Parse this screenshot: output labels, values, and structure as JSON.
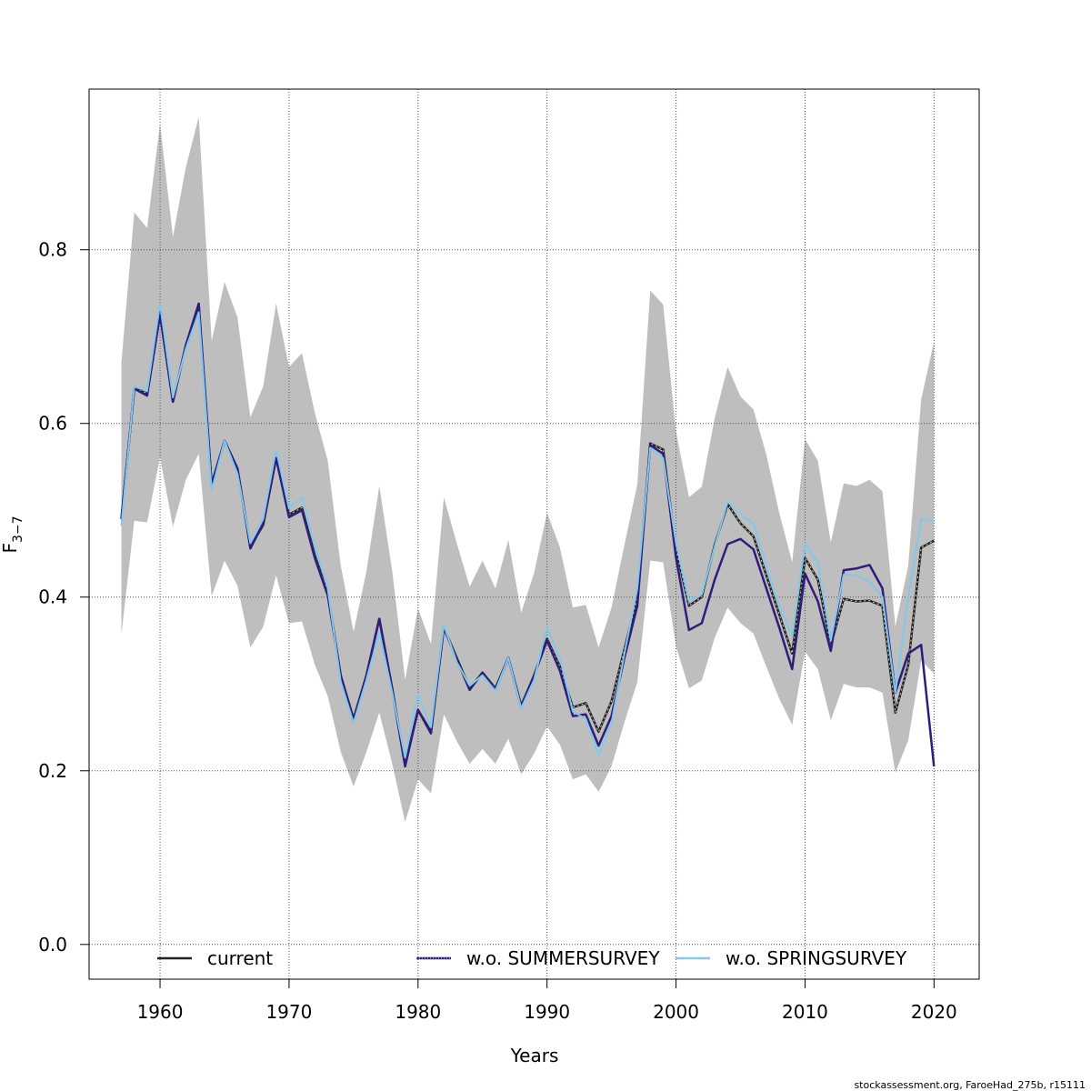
{
  "chart_data": {
    "type": "line",
    "xlabel": "Years",
    "ylabel_main": "F",
    "ylabel_sub": "3−7",
    "xlim": [
      1954.5,
      2023.5
    ],
    "ylim": [
      -0.04,
      0.985
    ],
    "xticks": [
      1960,
      1970,
      1980,
      1990,
      2000,
      2010,
      2020
    ],
    "yticks": [
      0.0,
      0.2,
      0.4,
      0.6,
      0.8
    ],
    "ytick_labels": [
      "0.0",
      "0.2",
      "0.4",
      "0.6",
      "0.8"
    ],
    "grid": true,
    "legend_placement": "bottom",
    "credit": "stockassessment.org, FaroeHad_275b, r15111",
    "years": [
      1957,
      1958,
      1959,
      1960,
      1961,
      1962,
      1963,
      1964,
      1965,
      1966,
      1967,
      1968,
      1969,
      1970,
      1971,
      1972,
      1973,
      1974,
      1975,
      1976,
      1977,
      1978,
      1979,
      1980,
      1981,
      1982,
      1983,
      1984,
      1985,
      1986,
      1987,
      1988,
      1989,
      1990,
      1991,
      1992,
      1993,
      1994,
      1995,
      1996,
      1997,
      1998,
      1999,
      2000,
      2001,
      2002,
      2003,
      2004,
      2005,
      2006,
      2007,
      2008,
      2009,
      2010,
      2011,
      2012,
      2013,
      2014,
      2015,
      2016,
      2017,
      2018,
      2019,
      2020
    ],
    "ci_upper": [
      0.67,
      0.843,
      0.825,
      0.945,
      0.815,
      0.895,
      0.953,
      0.695,
      0.763,
      0.722,
      0.607,
      0.643,
      0.738,
      0.665,
      0.681,
      0.612,
      0.557,
      0.437,
      0.36,
      0.43,
      0.528,
      0.43,
      0.305,
      0.387,
      0.346,
      0.515,
      0.462,
      0.412,
      0.442,
      0.41,
      0.466,
      0.382,
      0.428,
      0.497,
      0.457,
      0.388,
      0.391,
      0.342,
      0.388,
      0.46,
      0.53,
      0.753,
      0.737,
      0.59,
      0.515,
      0.527,
      0.606,
      0.665,
      0.631,
      0.616,
      0.564,
      0.497,
      0.44,
      0.582,
      0.557,
      0.463,
      0.531,
      0.528,
      0.535,
      0.522,
      0.366,
      0.436,
      0.628,
      0.694
    ],
    "ci_lower": [
      0.357,
      0.488,
      0.486,
      0.561,
      0.481,
      0.535,
      0.565,
      0.401,
      0.442,
      0.413,
      0.342,
      0.366,
      0.425,
      0.37,
      0.372,
      0.322,
      0.286,
      0.222,
      0.182,
      0.222,
      0.267,
      0.208,
      0.141,
      0.19,
      0.174,
      0.265,
      0.234,
      0.208,
      0.225,
      0.208,
      0.237,
      0.196,
      0.22,
      0.251,
      0.23,
      0.19,
      0.196,
      0.176,
      0.205,
      0.256,
      0.302,
      0.442,
      0.44,
      0.343,
      0.295,
      0.304,
      0.353,
      0.388,
      0.37,
      0.358,
      0.32,
      0.283,
      0.253,
      0.337,
      0.317,
      0.258,
      0.3,
      0.296,
      0.296,
      0.29,
      0.198,
      0.235,
      0.327,
      0.312
    ],
    "series": [
      {
        "name": "current",
        "color": "#222222",
        "values": [
          0.49,
          0.64,
          0.635,
          0.728,
          0.625,
          0.69,
          0.735,
          0.53,
          0.58,
          0.548,
          0.458,
          0.483,
          0.56,
          0.495,
          0.503,
          0.448,
          0.405,
          0.31,
          0.26,
          0.31,
          0.375,
          0.295,
          0.207,
          0.27,
          0.245,
          0.365,
          0.33,
          0.295,
          0.313,
          0.295,
          0.33,
          0.275,
          0.31,
          0.352,
          0.32,
          0.273,
          0.278,
          0.245,
          0.28,
          0.34,
          0.4,
          0.577,
          0.57,
          0.455,
          0.39,
          0.4,
          0.46,
          0.507,
          0.485,
          0.47,
          0.425,
          0.38,
          0.335,
          0.445,
          0.42,
          0.345,
          0.398,
          0.395,
          0.396,
          0.39,
          0.267,
          0.322,
          0.457,
          0.465
        ]
      },
      {
        "name": "w.o. SUMMERSURVEY",
        "color": "#2e1d7a",
        "values": [
          0.49,
          0.64,
          0.632,
          0.725,
          0.625,
          0.69,
          0.738,
          0.53,
          0.58,
          0.548,
          0.456,
          0.485,
          0.56,
          0.492,
          0.5,
          0.445,
          0.402,
          0.31,
          0.258,
          0.31,
          0.375,
          0.293,
          0.205,
          0.27,
          0.243,
          0.365,
          0.328,
          0.293,
          0.313,
          0.293,
          0.33,
          0.273,
          0.31,
          0.35,
          0.315,
          0.263,
          0.265,
          0.229,
          0.263,
          0.33,
          0.39,
          0.575,
          0.565,
          0.445,
          0.362,
          0.37,
          0.42,
          0.461,
          0.467,
          0.455,
          0.41,
          0.365,
          0.317,
          0.427,
          0.395,
          0.338,
          0.431,
          0.433,
          0.437,
          0.41,
          0.29,
          0.335,
          0.345,
          0.205
        ]
      },
      {
        "name": "w.o. SPRINGSURVEY",
        "color": "#7fc8ee",
        "values": [
          0.482,
          0.643,
          0.637,
          0.738,
          0.63,
          0.686,
          0.728,
          0.523,
          0.58,
          0.542,
          0.462,
          0.49,
          0.57,
          0.502,
          0.515,
          0.458,
          0.41,
          0.303,
          0.255,
          0.305,
          0.36,
          0.29,
          0.215,
          0.288,
          0.25,
          0.368,
          0.325,
          0.298,
          0.31,
          0.292,
          0.33,
          0.272,
          0.305,
          0.365,
          0.33,
          0.268,
          0.26,
          0.218,
          0.255,
          0.335,
          0.41,
          0.572,
          0.56,
          0.462,
          0.395,
          0.403,
          0.458,
          0.51,
          0.495,
          0.485,
          0.435,
          0.39,
          0.355,
          0.462,
          0.44,
          0.35,
          0.426,
          0.425,
          0.418,
          0.4,
          0.29,
          0.4,
          0.49,
          0.488
        ]
      }
    ]
  }
}
